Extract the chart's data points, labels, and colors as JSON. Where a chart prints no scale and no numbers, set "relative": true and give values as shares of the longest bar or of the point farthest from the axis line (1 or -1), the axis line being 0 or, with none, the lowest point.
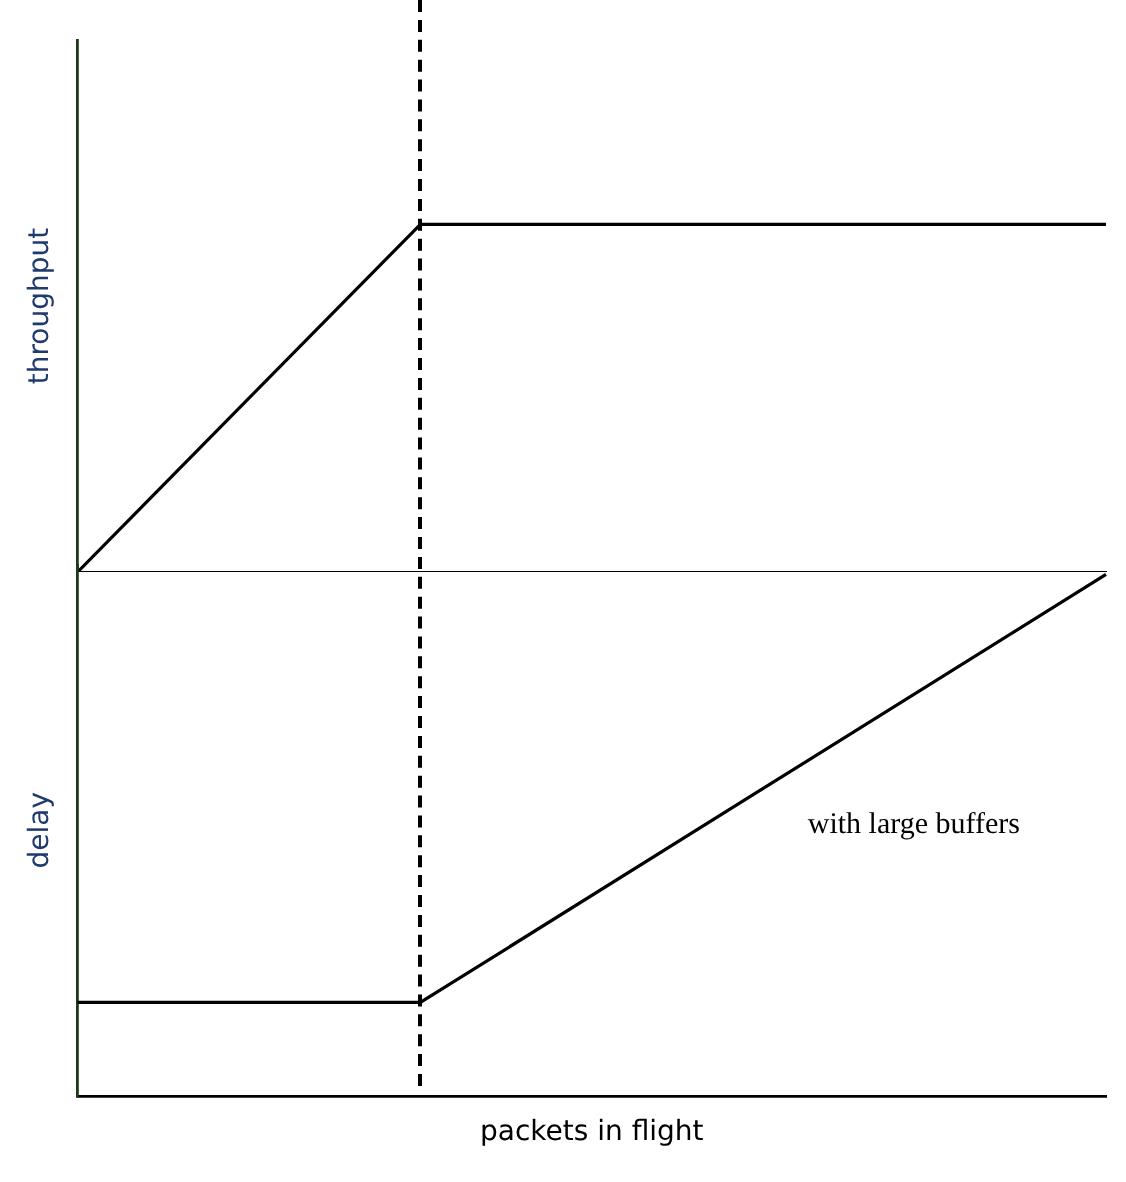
{
  "chart_data": [
    {
      "type": "line",
      "ylabel": "throughput",
      "relative": true,
      "categories": [
        null,
        null,
        null,
        null
      ],
      "series": [
        {
          "color": "#000000",
          "values": [
            0,
            1,
            1,
            1
          ]
        }
      ],
      "tick_labels": false,
      "legend": false,
      "grid": false,
      "marker": "none"
    },
    {
      "type": "line",
      "ylabel": "delay",
      "xlabel": "packets in flight",
      "relative": true,
      "categories": [
        null,
        null,
        null,
        null
      ],
      "series": [
        {
          "color": "#000000",
          "values": [
            0.18,
            0.18,
            0.59,
            1
          ]
        }
      ],
      "annotations": [
        "with large buffers"
      ],
      "tick_labels": false,
      "legend": false,
      "grid": false,
      "marker": "none"
    }
  ]
}
